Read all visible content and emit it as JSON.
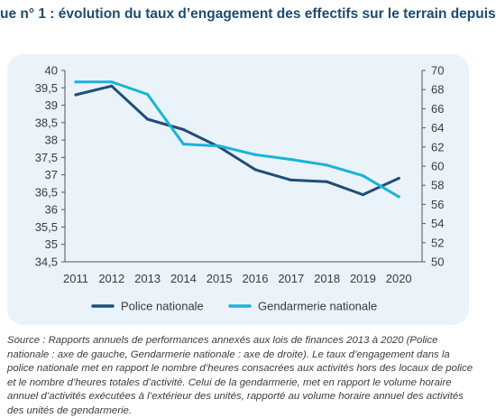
{
  "title": "ue n° 1 : évolution du taux d’engagement des effectifs sur le terrain depuis",
  "chart_data": {
    "type": "line",
    "categories": [
      "2011",
      "2012",
      "2013",
      "2014",
      "2015",
      "2016",
      "2017",
      "2018",
      "2019",
      "2020"
    ],
    "y_left": {
      "range": [
        34.5,
        40
      ],
      "ticks": [
        "40",
        "39,5",
        "39",
        "38,5",
        "38",
        "37,5",
        "37",
        "36,5",
        "36",
        "35,5",
        "35",
        "34,5"
      ]
    },
    "y_right": {
      "range": [
        50,
        70
      ],
      "ticks": [
        "70",
        "68",
        "66",
        "64",
        "62",
        "60",
        "58",
        "56",
        "54",
        "52",
        "50"
      ]
    },
    "grid": false,
    "legend_position": "bottom",
    "series": [
      {
        "name": "Police nationale",
        "axis": "left",
        "color": "#1f4e79",
        "values": [
          39.3,
          39.55,
          38.6,
          38.3,
          37.8,
          37.15,
          36.85,
          36.8,
          36.43,
          36.9
        ]
      },
      {
        "name": "Gendarmerie nationale",
        "axis": "right",
        "color": "#1bb3d6",
        "values": [
          68.8,
          68.8,
          67.5,
          62.3,
          62.1,
          61.2,
          60.7,
          60.1,
          59.0,
          56.8
        ]
      }
    ]
  },
  "source_note": "Source : Rapports annuels de performances annexés aux lois de finances 2013 à 2020 (Police nationale : axe de gauche, Gendarmerie nationale : axe de droite). Le taux d’engagement dans la police nationale met en rapport le nombre d’heures consacrées aux activités hors des locaux de police et le nombre d’heures totales d’activité. Celui de la gendarmerie, met en rapport le volume horaire annuel d’activités exécutées à l’extérieur des unités, rapporté au volume horaire annuel des activités des unités de gendarmerie."
}
